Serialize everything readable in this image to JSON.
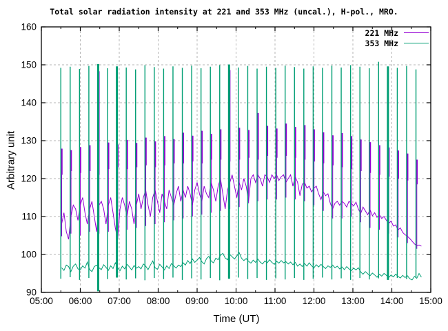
{
  "title": "Total solar radiation intensity at 221 and 353 MHz (uncal.), H-pol., MRO.",
  "axes": {
    "xlabel": "Time (UT)",
    "ylabel": "Arbitrary unit",
    "x_tick_labels": [
      "05:00",
      "06:00",
      "07:00",
      "08:00",
      "09:00",
      "10:00",
      "11:00",
      "12:00",
      "13:00",
      "14:00",
      "15:00"
    ],
    "x_tick_hours": [
      5,
      6,
      7,
      8,
      9,
      10,
      11,
      12,
      13,
      14,
      15
    ],
    "y_ticks": [
      90,
      100,
      110,
      120,
      130,
      140,
      150,
      160
    ],
    "xlim_hours": [
      5,
      15
    ],
    "ylim": [
      90,
      160
    ],
    "grid": "dashed-major"
  },
  "legend": [
    {
      "label": "221 MHz",
      "color": "#9400D3"
    },
    {
      "label": "353 MHz",
      "color": "#009E73"
    }
  ],
  "colors": {
    "series_221": "#9400D3",
    "series_353": "#009E73",
    "grid": "#b5b5b5",
    "border": "#000000",
    "background": "#ffffff"
  },
  "chart_data": {
    "type": "line",
    "title": "Total solar radiation intensity at 221 and 353 MHz (uncal.), H-pol., MRO.",
    "xlabel": "Time (UT)",
    "ylabel": "Arbitrary unit",
    "xlim_hours": [
      5,
      15
    ],
    "ylim": [
      90,
      160
    ],
    "legend_position": "top-right-inside",
    "series": [
      {
        "name": "221 MHz",
        "color": "#9400D3",
        "baseline": {
          "t0": 5.52,
          "dt": 0.06,
          "values": [
            108,
            111,
            106,
            104,
            110,
            113,
            112,
            109,
            113,
            115,
            111,
            108,
            112,
            114,
            110,
            106,
            113,
            114,
            112,
            108,
            113,
            115,
            111,
            107,
            104,
            112,
            115,
            113,
            110,
            114,
            112,
            108,
            113,
            116,
            112,
            115,
            117,
            113,
            110,
            115,
            117,
            114,
            111,
            116,
            114,
            112,
            117,
            115,
            113,
            116,
            118,
            114,
            117,
            115,
            118,
            116,
            113,
            117,
            119,
            116,
            114,
            118,
            116,
            115,
            119,
            117,
            114,
            118,
            120,
            116,
            112,
            117,
            119,
            121,
            118,
            115,
            119,
            117,
            120,
            118,
            114,
            120,
            121,
            119,
            121,
            120,
            118,
            121,
            120.5,
            119,
            121,
            120,
            121,
            119.5,
            120.5,
            121,
            119,
            120,
            121,
            118,
            120.5,
            119,
            115.5,
            118.5,
            119,
            117.5,
            118,
            116.5,
            117.5,
            118,
            116,
            114.5,
            116.5,
            115.5,
            116,
            113.5,
            112,
            113.5,
            114,
            113,
            114,
            113.5,
            112.5,
            114,
            113.5,
            112.8,
            113.8,
            112,
            110.8,
            112.5,
            111.5,
            110.5,
            111.8,
            110.2,
            111,
            109.8,
            110.5,
            109.5,
            110,
            109,
            108.2,
            108.8,
            107.5,
            107.8,
            106.5,
            107,
            105.8,
            105.2,
            104.8,
            104.2,
            103.5,
            102.8,
            102.3,
            102.5,
            102.2
          ]
        }
      },
      {
        "name": "353 MHz",
        "color": "#009E73",
        "baseline": {
          "t0": 5.52,
          "dt": 0.06,
          "values": [
            96.5,
            95.8,
            97.2,
            96.8,
            95.5,
            96.9,
            97.5,
            96.2,
            95.9,
            97.0,
            96.4,
            98.0,
            96.0,
            95.5,
            96.8,
            97.2,
            96.5,
            96.0,
            97.3,
            96.6,
            95.8,
            97.0,
            96.3,
            97.8,
            96.5,
            95.7,
            96.9,
            96.2,
            97.4,
            96.7,
            95.9,
            97.1,
            96.4,
            96.8,
            96.2,
            97.5,
            96.9,
            96.0,
            97.2,
            98.3,
            96.5,
            96.1,
            97.4,
            96.7,
            95.9,
            97.0,
            96.3,
            97.6,
            97.0,
            96.4,
            97.2,
            96.8,
            97.8,
            97.2,
            98.4,
            97.6,
            98.8,
            97.9,
            98.5,
            99.2,
            98.1,
            97.5,
            98.9,
            99.5,
            98.3,
            97.8,
            99.0,
            98.6,
            99.8,
            100.3,
            99.1,
            98.6,
            100.0,
            99.4,
            98.8,
            99.6,
            100.5,
            99.0,
            98.4,
            98.9,
            98.2,
            97.7,
            98.5,
            97.9,
            98.8,
            98.0,
            97.5,
            98.3,
            97.8,
            98.6,
            97.9,
            97.4,
            98.2,
            97.7,
            98.4,
            97.8,
            98.1,
            97.5,
            98.0,
            97.3,
            97.9,
            96.9,
            97.5,
            96.8,
            97.6,
            96.9,
            97.8,
            97.0,
            96.5,
            97.3,
            96.7,
            97.4,
            96.8,
            96.3,
            97.0,
            96.6,
            97.2,
            96.5,
            96.9,
            96.2,
            96.7,
            96.0,
            96.8,
            96.2,
            95.7,
            96.4,
            95.9,
            96.5,
            95.4,
            94.8,
            95.5,
            94.9,
            94.4,
            95.1,
            94.6,
            94.0,
            94.8,
            94.3,
            95.0,
            94.5,
            93.9,
            94.6,
            94.1,
            94.8,
            94.2,
            93.8,
            94.5,
            93.9,
            94.4,
            93.6,
            93.3,
            94.2,
            93.7,
            95.0,
            94.0
          ]
        }
      }
    ],
    "calibration_spikes": {
      "description": "Periodic calibration spikes ~every 14 min; g=353MHz span [lo,hi], p=221MHz bar [bot,top] with thin tail down to plo; w=1 means wide green spike",
      "events": [
        {
          "t": 5.5,
          "g": [
            93.6,
            149.2
          ],
          "p": [
            121,
            127.9
          ],
          "plo": 104.8,
          "w": 0
        },
        {
          "t": 5.74,
          "g": [
            94.0,
            149.5
          ],
          "p": [
            122,
            127.5
          ],
          "plo": 105.5,
          "w": 0
        },
        {
          "t": 5.98,
          "g": [
            93.3,
            148.9
          ],
          "p": [
            121.5,
            128.3
          ],
          "plo": 105.0,
          "w": 0
        },
        {
          "t": 6.22,
          "g": [
            93.8,
            149.7
          ],
          "p": [
            122,
            128.8
          ],
          "plo": 106.0,
          "w": 0
        },
        {
          "t": 6.46,
          "g": [
            90.3,
            150.2
          ],
          "p": [
            121,
            148.3
          ],
          "plo": 105.5,
          "w": 1
        },
        {
          "t": 6.7,
          "g": [
            93.5,
            149.1
          ],
          "p": [
            122.5,
            129.5
          ],
          "plo": 106.0,
          "w": 0
        },
        {
          "t": 6.94,
          "g": [
            93.9,
            149.6
          ],
          "p": [
            123,
            129.0
          ],
          "plo": 105.5,
          "w": 1
        },
        {
          "t": 7.18,
          "g": [
            93.4,
            149.3
          ],
          "p": [
            122.5,
            130.2
          ],
          "plo": 106.5,
          "w": 0
        },
        {
          "t": 7.42,
          "g": [
            93.7,
            148.8
          ],
          "p": [
            123,
            129.4
          ],
          "plo": 107.0,
          "w": 0
        },
        {
          "t": 7.66,
          "g": [
            93.2,
            149.9
          ],
          "p": [
            123.5,
            130.8
          ],
          "plo": 107.5,
          "w": 0
        },
        {
          "t": 7.9,
          "g": [
            93.8,
            149.4
          ],
          "p": [
            123,
            129.8
          ],
          "plo": 108.0,
          "w": 0
        },
        {
          "t": 8.14,
          "g": [
            93.5,
            149.0
          ],
          "p": [
            123.5,
            131.2
          ],
          "plo": 108.5,
          "w": 0
        },
        {
          "t": 8.38,
          "g": [
            93.9,
            149.6
          ],
          "p": [
            124,
            130.4
          ],
          "plo": 109.0,
          "w": 0
        },
        {
          "t": 8.62,
          "g": [
            93.3,
            149.2
          ],
          "p": [
            124,
            132.1
          ],
          "plo": 109.5,
          "w": 0
        },
        {
          "t": 8.86,
          "g": [
            93.7,
            149.8
          ],
          "p": [
            124.5,
            131.3
          ],
          "plo": 110.0,
          "w": 0
        },
        {
          "t": 9.1,
          "g": [
            93.4,
            149.1
          ],
          "p": [
            124,
            132.6
          ],
          "plo": 110.5,
          "w": 0
        },
        {
          "t": 9.34,
          "g": [
            93.8,
            149.5
          ],
          "p": [
            125,
            131.8
          ],
          "plo": 111.0,
          "w": 0
        },
        {
          "t": 9.58,
          "g": [
            93.2,
            149.9
          ],
          "p": [
            125,
            133.0
          ],
          "plo": 111.5,
          "w": 0
        },
        {
          "t": 9.82,
          "g": [
            93.6,
            150.1
          ],
          "p": [
            124.5,
            148.6
          ],
          "plo": 112.0,
          "w": 1
        },
        {
          "t": 10.06,
          "g": [
            93.9,
            149.3
          ],
          "p": [
            125,
            133.4
          ],
          "plo": 112.5,
          "w": 0
        },
        {
          "t": 10.3,
          "g": [
            93.5,
            149.7
          ],
          "p": [
            125.5,
            132.8
          ],
          "plo": 113.5,
          "w": 0
        },
        {
          "t": 10.54,
          "g": [
            93.8,
            149.0
          ],
          "p": [
            125,
            137.3
          ],
          "plo": 114.0,
          "w": 0
        },
        {
          "t": 10.78,
          "g": [
            93.3,
            149.5
          ],
          "p": [
            126,
            133.9
          ],
          "plo": 114.5,
          "w": 0
        },
        {
          "t": 11.02,
          "g": [
            93.7,
            149.2
          ],
          "p": [
            125.5,
            133.2
          ],
          "plo": 114.5,
          "w": 0
        },
        {
          "t": 11.26,
          "g": [
            93.4,
            149.8
          ],
          "p": [
            126,
            134.5
          ],
          "plo": 115.0,
          "w": 0
        },
        {
          "t": 11.5,
          "g": [
            93.8,
            149.4
          ],
          "p": [
            125.5,
            133.6
          ],
          "plo": 114.5,
          "w": 0
        },
        {
          "t": 11.74,
          "g": [
            93.3,
            149.0
          ],
          "p": [
            125,
            134.1
          ],
          "plo": 114.0,
          "w": 0
        },
        {
          "t": 11.98,
          "g": [
            93.6,
            149.6
          ],
          "p": [
            124.5,
            133.0
          ],
          "plo": 113.0,
          "w": 0
        },
        {
          "t": 12.22,
          "g": [
            93.9,
            149.2
          ],
          "p": [
            124,
            132.2
          ],
          "plo": 111.5,
          "w": 0
        },
        {
          "t": 12.46,
          "g": [
            93.4,
            149.8
          ],
          "p": [
            123.5,
            131.4
          ],
          "plo": 109.5,
          "w": 0
        },
        {
          "t": 12.7,
          "g": [
            93.7,
            149.3
          ],
          "p": [
            123,
            132.0
          ],
          "plo": 109.5,
          "w": 0
        },
        {
          "t": 12.94,
          "g": [
            93.3,
            149.9
          ],
          "p": [
            122.5,
            131.2
          ],
          "plo": 110.0,
          "w": 0
        },
        {
          "t": 13.18,
          "g": [
            93.8,
            149.5
          ],
          "p": [
            122,
            130.3
          ],
          "plo": 108.5,
          "w": 0
        },
        {
          "t": 13.42,
          "g": [
            93.4,
            149.1
          ],
          "p": [
            121.5,
            129.6
          ],
          "plo": 107.0,
          "w": 0
        },
        {
          "t": 13.66,
          "g": [
            93.7,
            150.8
          ],
          "p": [
            121,
            128.8
          ],
          "plo": 106.5,
          "w": 0
        },
        {
          "t": 13.9,
          "g": [
            93.3,
            149.6
          ],
          "p": [
            120.5,
            128.2
          ],
          "plo": 105.5,
          "w": 1
        },
        {
          "t": 14.14,
          "g": [
            93.8,
            149.2
          ],
          "p": [
            120,
            127.4
          ],
          "plo": 104.5,
          "w": 0
        },
        {
          "t": 14.38,
          "g": [
            93.5,
            149.7
          ],
          "p": [
            119.5,
            126.6
          ],
          "plo": 103.0,
          "w": 0
        },
        {
          "t": 14.62,
          "g": [
            93.9,
            148.8
          ],
          "p": [
            118.5,
            125.0
          ],
          "plo": 101.5,
          "w": 0
        }
      ]
    }
  }
}
